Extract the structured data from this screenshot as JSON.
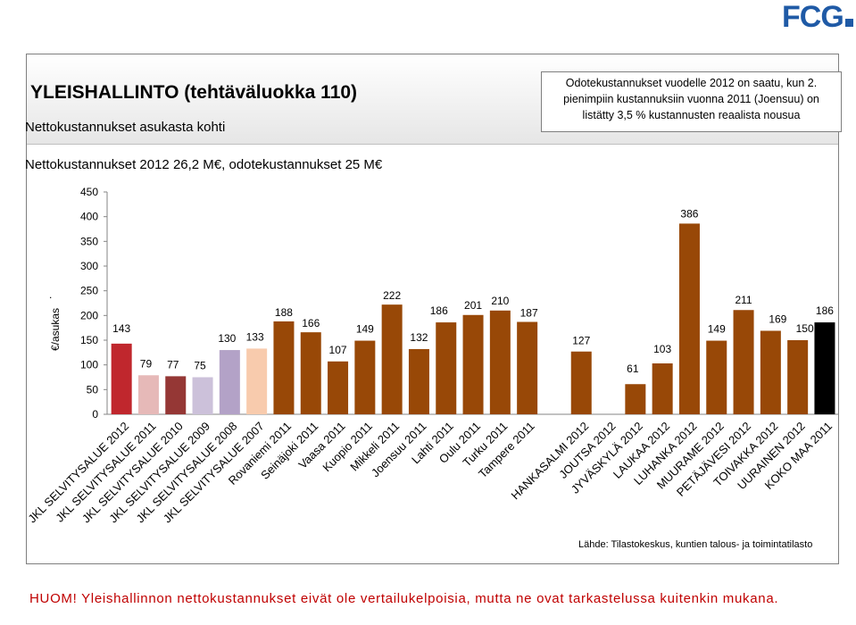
{
  "logo_text": "FCG",
  "header": {
    "title": "YLEISHALLINTO (tehtäväluokka 110)",
    "subtitle": "Nettokustannukset  asukasta kohti"
  },
  "note": {
    "lines": [
      "Odotekustannukset vuodelle 2012 on saatu, kun 2.",
      "pienimpiin kustannuksiin vuonna 2011 (Joensuu) on",
      "listätty 3,5 % kustannusten reaalista nousua"
    ]
  },
  "summary": "Nettokustannukset  2012 26,2 M€, odotekustannukset 25 M€",
  "source": "Lähde: Tilastokeskus, kuntien talous- ja toimintatilasto",
  "footer": "HUOM! Yleishallinnon nettokustannukset eivät ole vertailukelpoisia, mutta ne ovat tarkastelussa kuitenkin mukana.",
  "chart_data": {
    "type": "bar",
    "ylabel": "€/asukas",
    "ylim": [
      0,
      450
    ],
    "yticks": [
      0,
      50,
      100,
      150,
      200,
      250,
      300,
      350,
      400,
      450
    ],
    "grid": false,
    "bars": [
      {
        "label": "JKL SELVITYSALUE 2012",
        "value": 143,
        "color": "#c0272d"
      },
      {
        "label": "JKL SELVITYSALUE 2011",
        "value": 79,
        "color": "#e6b9b8"
      },
      {
        "label": "JKL SELVITYSALUE 2010",
        "value": 77,
        "color": "#953735"
      },
      {
        "label": "JKL SELVITYSALUE 2009",
        "value": 75,
        "color": "#ccc1da"
      },
      {
        "label": "JKL SELVITYSALUE 2008",
        "value": 130,
        "color": "#b3a2c7"
      },
      {
        "label": "JKL SELVITYSALUE 2007",
        "value": 133,
        "color": "#f8cbad"
      },
      {
        "label": "Rovaniemi 2011",
        "value": 188,
        "color": "#984807"
      },
      {
        "label": "Seinäjoki 2011",
        "value": 166,
        "color": "#984807"
      },
      {
        "label": "Vaasa 2011",
        "value": 107,
        "color": "#984807"
      },
      {
        "label": "Kuopio 2011",
        "value": 149,
        "color": "#984807"
      },
      {
        "label": "Mikkeli 2011",
        "value": 222,
        "color": "#984807"
      },
      {
        "label": "Joensuu 2011",
        "value": 132,
        "color": "#984807"
      },
      {
        "label": "Lahti 2011",
        "value": 186,
        "color": "#984807"
      },
      {
        "label": "Oulu 2011",
        "value": 201,
        "color": "#984807"
      },
      {
        "label": "Turku 2011",
        "value": 210,
        "color": "#984807"
      },
      {
        "label": "Tampere 2011",
        "value": 187,
        "color": "#984807"
      },
      {
        "label": "",
        "value": null,
        "color": ""
      },
      {
        "label": "HANKASALMI 2012",
        "value": 127,
        "color": "#984807"
      },
      {
        "label": "JOUTSA 2012",
        "value": null,
        "color": "#984807"
      },
      {
        "label": "JYVÄSKYLÄ 2012",
        "value": 61,
        "color": "#984807"
      },
      {
        "label": "LAUKAA 2012",
        "value": 103,
        "color": "#984807"
      },
      {
        "label": "LUHANKA 2012",
        "value": 386,
        "color": "#984807"
      },
      {
        "label": "MUURAME 2012",
        "value": 149,
        "color": "#984807"
      },
      {
        "label": "PETÄJÄVESI 2012",
        "value": 211,
        "color": "#984807"
      },
      {
        "label": "TOIVAKKA 2012",
        "value": 169,
        "color": "#984807"
      },
      {
        "label": "UURAINEN 2012",
        "value": 150,
        "color": "#984807"
      },
      {
        "label": "KOKO MAA 2011",
        "value": 186,
        "color": "#000000"
      }
    ]
  }
}
